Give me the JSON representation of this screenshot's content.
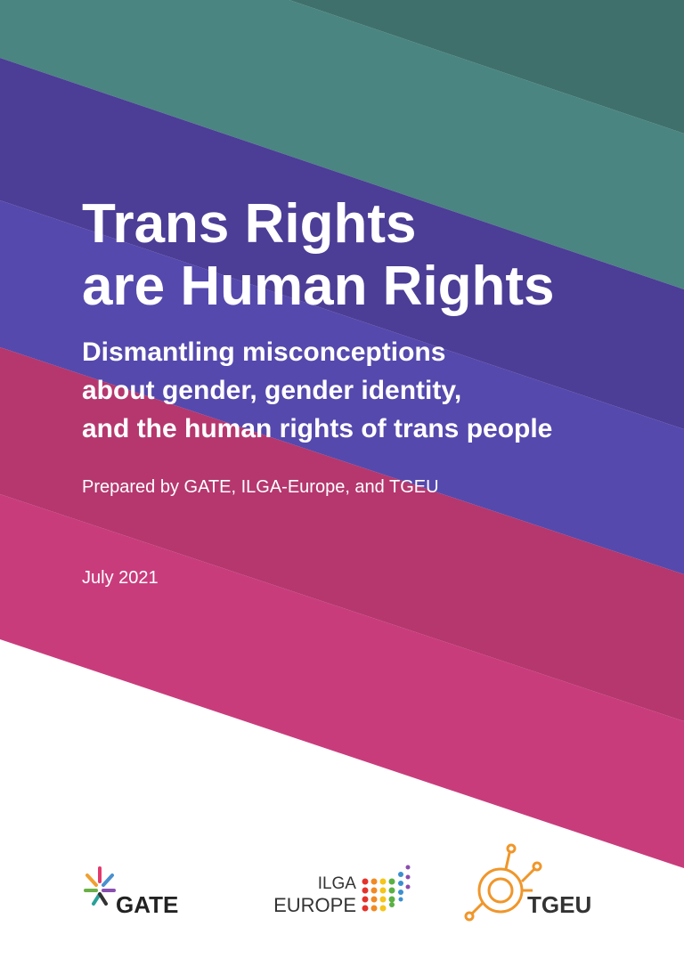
{
  "cover": {
    "title": [
      "Trans Rights",
      "are Human Rights"
    ],
    "subtitle": [
      "Dismantling misconceptions",
      "about gender, gender identity,",
      "and the human rights of trans people"
    ],
    "prepared_by": "Prepared by GATE, ILGA-Europe, and TGEU",
    "date": "July 2021"
  },
  "logos": {
    "gate": "GATE",
    "ilga": [
      "ILGA",
      "EUROPE"
    ],
    "tgeu": "TGEU"
  }
}
